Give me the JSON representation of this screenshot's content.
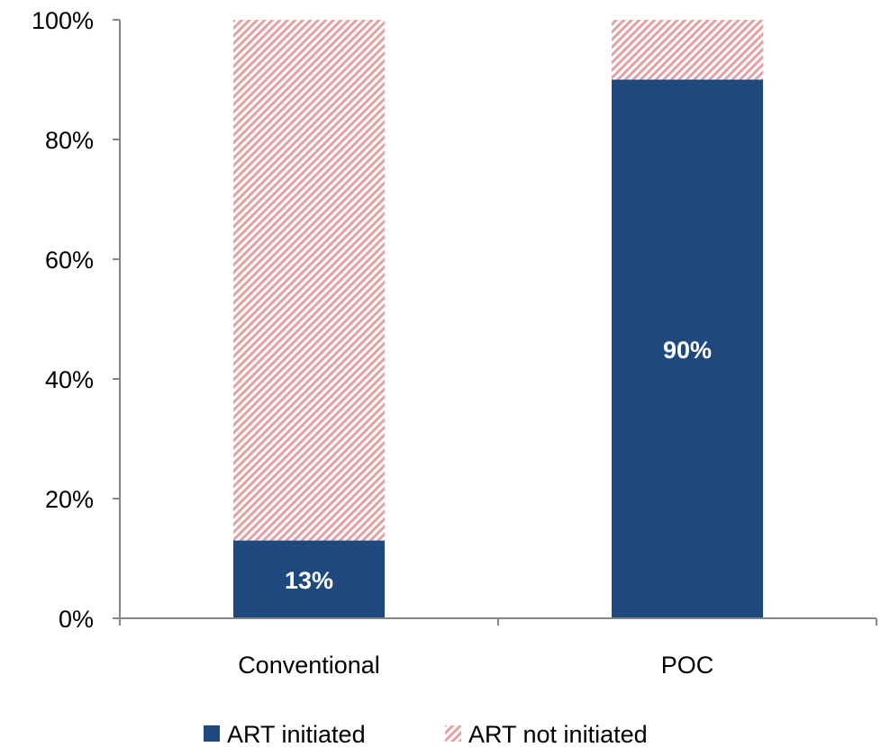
{
  "chart_data": {
    "type": "bar",
    "stacked": true,
    "categories": [
      "Conventional",
      "POC"
    ],
    "series": [
      {
        "name": "ART initiated",
        "values": [
          13,
          90
        ],
        "data_labels": [
          "13%",
          "90%"
        ],
        "color": "#1f497d",
        "pattern": "solid"
      },
      {
        "name": "ART not initiated",
        "values": [
          87,
          10
        ],
        "color": "#e6a0a0",
        "pattern": "diagonal-hatch"
      }
    ],
    "ylim": [
      0,
      100
    ],
    "yticks": [
      0,
      20,
      40,
      60,
      80,
      100
    ],
    "ytick_labels": [
      "0%",
      "20%",
      "40%",
      "60%",
      "80%",
      "100%"
    ],
    "grid": false,
    "legend": "bottom",
    "title": "",
    "xlabel": "",
    "ylabel": ""
  }
}
